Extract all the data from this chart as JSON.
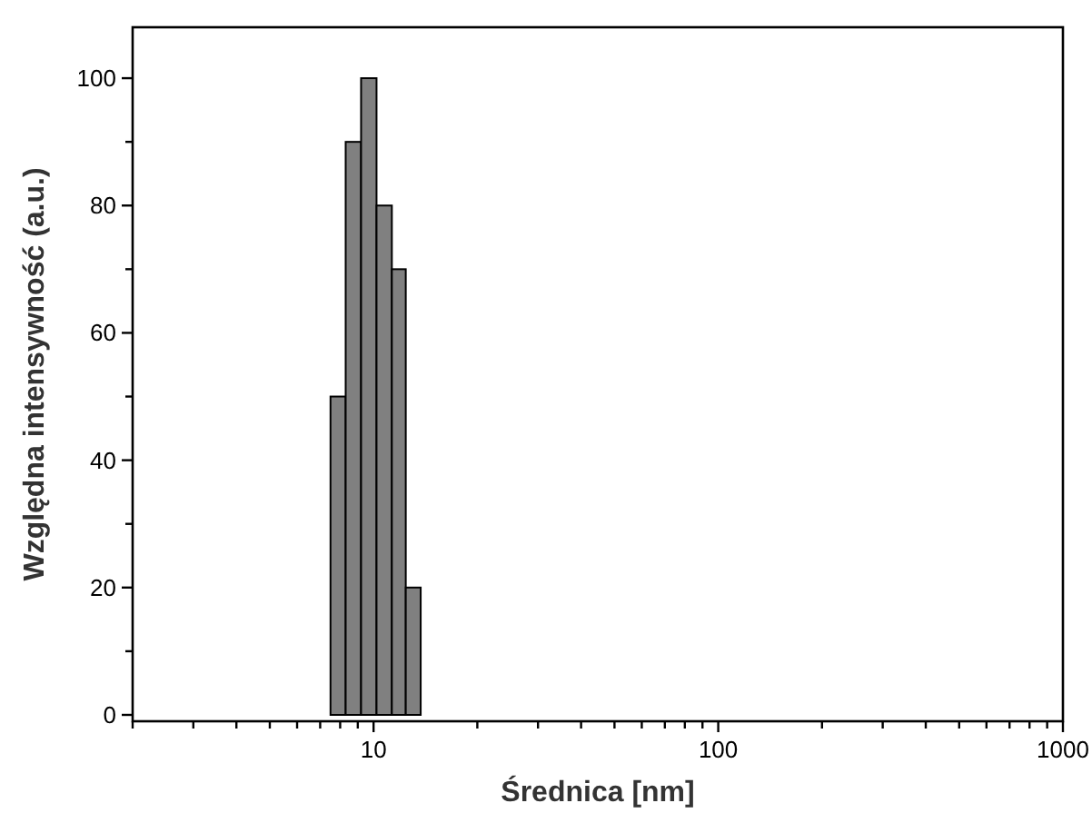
{
  "chart_data": {
    "type": "histogram",
    "xlabel": "Średnica [nm]",
    "ylabel": "Względna intensywność (a.u.)",
    "bins": [
      7.5,
      8.3,
      9.2,
      10.2,
      11.3,
      12.4,
      13.7
    ],
    "values": [
      50,
      90,
      100,
      80,
      70,
      20
    ],
    "color": "#808080",
    "log": "x",
    "xlim": [
      2,
      1000
    ],
    "xticks": [
      {
        "value": 2,
        "label": null
      },
      {
        "value": 3,
        "label": null
      },
      {
        "value": 4,
        "label": null
      },
      {
        "value": 5,
        "label": null
      },
      {
        "value": 6,
        "label": null
      },
      {
        "value": 7,
        "label": null
      },
      {
        "value": 8,
        "label": null
      },
      {
        "value": 9,
        "label": null
      },
      10,
      {
        "value": 20,
        "label": null
      },
      {
        "value": 30,
        "label": null
      },
      {
        "value": 40,
        "label": null
      },
      {
        "value": 50,
        "label": null
      },
      {
        "value": 60,
        "label": null
      },
      {
        "value": 70,
        "label": null
      },
      {
        "value": 80,
        "label": null
      },
      {
        "value": 90,
        "label": null
      },
      100,
      {
        "value": 200,
        "label": null
      },
      {
        "value": 300,
        "label": null
      },
      {
        "value": 400,
        "label": null
      },
      {
        "value": 500,
        "label": null
      },
      {
        "value": 600,
        "label": null
      },
      {
        "value": 700,
        "label": null
      },
      {
        "value": 800,
        "label": null
      },
      {
        "value": 900,
        "label": null
      },
      1000
    ],
    "ylim": [
      -1,
      108
    ],
    "yticks": [
      0,
      {
        "value": 10,
        "label": null
      },
      20,
      {
        "value": 30,
        "label": null
      },
      40,
      {
        "value": 50,
        "label": null
      },
      60,
      {
        "value": 70,
        "label": null
      },
      80,
      {
        "value": 90,
        "label": null
      },
      100
    ],
    "grid": false
  }
}
